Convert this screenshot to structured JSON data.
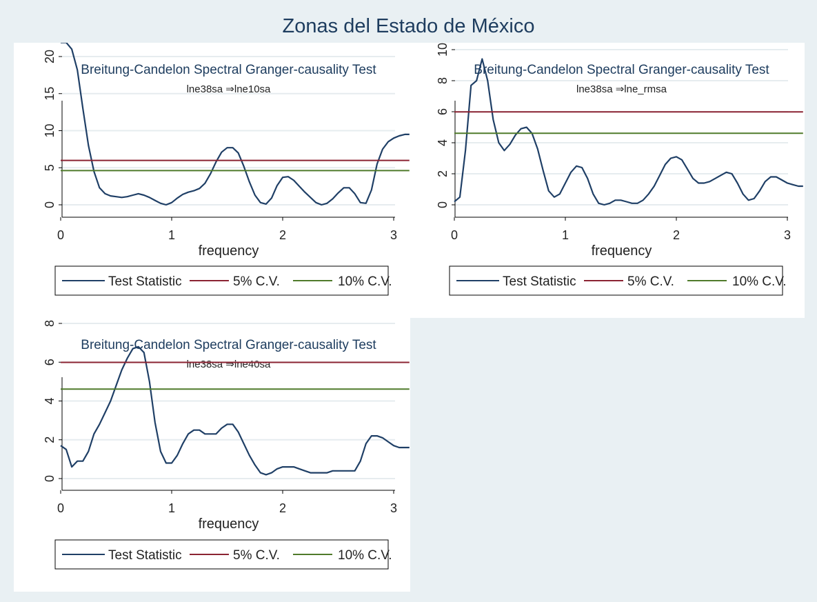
{
  "figure": {
    "title": "Zonas del Estado de México"
  },
  "colors": {
    "figure_bg": "#e9f0f3",
    "panel_bg": "#ffffff",
    "test_statistic": "#1f3f66",
    "cv5": "#8b2332",
    "cv10": "#4f7a2a"
  },
  "chart_data": [
    {
      "type": "line",
      "title": "Breitung-Candelon Spectral Granger-causality Test",
      "subtitle": "lne38sa ⇒lne10sa",
      "xlabel": "frequency",
      "ylabel": "",
      "xlim": [
        0,
        3.1416
      ],
      "ylim": [
        0,
        22
      ],
      "xticks": [
        0,
        1,
        2,
        3
      ],
      "yticks": [
        0,
        5,
        10,
        15,
        20
      ],
      "grid": true,
      "legend": {
        "position": "bottom",
        "entries": [
          "Test Statistic",
          "5% C.V.",
          "10% C.V."
        ]
      },
      "series": [
        {
          "name": "Test Statistic",
          "x": [
            0.0,
            0.05,
            0.1,
            0.15,
            0.2,
            0.25,
            0.3,
            0.35,
            0.4,
            0.45,
            0.5,
            0.55,
            0.6,
            0.65,
            0.7,
            0.75,
            0.8,
            0.85,
            0.9,
            0.95,
            1.0,
            1.05,
            1.1,
            1.15,
            1.2,
            1.25,
            1.3,
            1.35,
            1.4,
            1.45,
            1.5,
            1.55,
            1.6,
            1.65,
            1.7,
            1.75,
            1.8,
            1.85,
            1.9,
            1.95,
            2.0,
            2.05,
            2.1,
            2.15,
            2.2,
            2.25,
            2.3,
            2.35,
            2.4,
            2.45,
            2.5,
            2.55,
            2.6,
            2.65,
            2.7,
            2.75,
            2.8,
            2.85,
            2.9,
            2.95,
            3.0,
            3.05,
            3.1,
            3.1416
          ],
          "y": [
            21.9,
            21.9,
            21.0,
            18.2,
            13.0,
            8.0,
            4.5,
            2.3,
            1.5,
            1.2,
            1.1,
            1.0,
            1.1,
            1.3,
            1.5,
            1.3,
            1.0,
            0.6,
            0.2,
            0.0,
            0.3,
            0.9,
            1.4,
            1.7,
            1.9,
            2.2,
            2.9,
            4.2,
            5.8,
            7.1,
            7.7,
            7.7,
            7.0,
            5.2,
            3.1,
            1.3,
            0.3,
            0.1,
            0.9,
            2.6,
            3.7,
            3.8,
            3.3,
            2.5,
            1.7,
            1.0,
            0.3,
            0.0,
            0.2,
            0.8,
            1.6,
            2.3,
            2.3,
            1.5,
            0.3,
            0.2,
            2.0,
            5.5,
            7.5,
            8.5,
            9.0,
            9.3,
            9.5,
            9.5
          ]
        },
        {
          "name": "5% C.V.",
          "x": [
            0,
            3.1416
          ],
          "y": [
            5.99,
            5.99
          ]
        },
        {
          "name": "10% C.V.",
          "x": [
            0,
            3.1416
          ],
          "y": [
            4.61,
            4.61
          ]
        }
      ]
    },
    {
      "type": "line",
      "title": "Breitung-Candelon Spectral Granger-causality Test",
      "subtitle": "lne38sa ⇒lne_rmsa",
      "xlabel": "frequency",
      "ylabel": "",
      "xlim": [
        0,
        3.1416
      ],
      "ylim": [
        0,
        10
      ],
      "xticks": [
        0,
        1,
        2,
        3
      ],
      "yticks": [
        0,
        2,
        4,
        6,
        8,
        10
      ],
      "grid": true,
      "legend": {
        "position": "bottom",
        "entries": [
          "Test Statistic",
          "5% C.V.",
          "10% C.V."
        ]
      },
      "series": [
        {
          "name": "Test Statistic",
          "x": [
            0.0,
            0.05,
            0.1,
            0.15,
            0.2,
            0.25,
            0.3,
            0.35,
            0.4,
            0.45,
            0.5,
            0.55,
            0.6,
            0.65,
            0.7,
            0.75,
            0.8,
            0.85,
            0.9,
            0.95,
            1.0,
            1.05,
            1.1,
            1.15,
            1.2,
            1.25,
            1.3,
            1.35,
            1.4,
            1.45,
            1.5,
            1.55,
            1.6,
            1.65,
            1.7,
            1.75,
            1.8,
            1.85,
            1.9,
            1.95,
            2.0,
            2.05,
            2.1,
            2.15,
            2.2,
            2.25,
            2.3,
            2.35,
            2.4,
            2.45,
            2.5,
            2.55,
            2.6,
            2.65,
            2.7,
            2.75,
            2.8,
            2.85,
            2.9,
            2.95,
            3.0,
            3.05,
            3.1,
            3.1416
          ],
          "y": [
            0.2,
            0.5,
            3.5,
            7.7,
            8.0,
            9.4,
            8.0,
            5.5,
            4.0,
            3.5,
            3.9,
            4.5,
            4.9,
            5.0,
            4.6,
            3.6,
            2.2,
            0.9,
            0.5,
            0.7,
            1.4,
            2.1,
            2.5,
            2.4,
            1.7,
            0.7,
            0.1,
            0.0,
            0.1,
            0.3,
            0.3,
            0.2,
            0.1,
            0.1,
            0.3,
            0.7,
            1.2,
            1.9,
            2.6,
            3.0,
            3.1,
            2.9,
            2.3,
            1.7,
            1.4,
            1.4,
            1.5,
            1.7,
            1.9,
            2.1,
            2.0,
            1.4,
            0.7,
            0.3,
            0.4,
            0.9,
            1.5,
            1.8,
            1.8,
            1.6,
            1.4,
            1.3,
            1.2,
            1.2
          ]
        },
        {
          "name": "5% C.V.",
          "x": [
            0,
            3.1416
          ],
          "y": [
            5.99,
            5.99
          ]
        },
        {
          "name": "10% C.V.",
          "x": [
            0,
            3.1416
          ],
          "y": [
            4.61,
            4.61
          ]
        }
      ]
    },
    {
      "type": "line",
      "title": "Breitung-Candelon Spectral Granger-causality Test",
      "subtitle": "lne38sa ⇒lne40sa",
      "xlabel": "frequency",
      "ylabel": "",
      "xlim": [
        0,
        3.1416
      ],
      "ylim": [
        0,
        8
      ],
      "xticks": [
        0,
        1,
        2,
        3
      ],
      "yticks": [
        0,
        2,
        4,
        6,
        8
      ],
      "grid": true,
      "legend": {
        "position": "bottom",
        "entries": [
          "Test Statistic",
          "5% C.V.",
          "10% C.V."
        ]
      },
      "series": [
        {
          "name": "Test Statistic",
          "x": [
            0.0,
            0.05,
            0.1,
            0.15,
            0.2,
            0.25,
            0.3,
            0.35,
            0.4,
            0.45,
            0.5,
            0.55,
            0.6,
            0.65,
            0.7,
            0.75,
            0.8,
            0.85,
            0.9,
            0.95,
            1.0,
            1.05,
            1.1,
            1.15,
            1.2,
            1.25,
            1.3,
            1.35,
            1.4,
            1.45,
            1.5,
            1.55,
            1.6,
            1.65,
            1.7,
            1.75,
            1.8,
            1.85,
            1.9,
            1.95,
            2.0,
            2.05,
            2.1,
            2.15,
            2.2,
            2.25,
            2.3,
            2.35,
            2.4,
            2.45,
            2.5,
            2.55,
            2.6,
            2.65,
            2.7,
            2.75,
            2.8,
            2.85,
            2.9,
            2.95,
            3.0,
            3.05,
            3.1,
            3.1416
          ],
          "y": [
            1.7,
            1.5,
            0.6,
            0.9,
            0.9,
            1.4,
            2.3,
            2.8,
            3.4,
            4.0,
            4.8,
            5.6,
            6.2,
            6.7,
            6.8,
            6.5,
            5.0,
            2.9,
            1.4,
            0.8,
            0.8,
            1.2,
            1.8,
            2.3,
            2.5,
            2.5,
            2.3,
            2.3,
            2.3,
            2.6,
            2.8,
            2.8,
            2.4,
            1.8,
            1.2,
            0.7,
            0.3,
            0.2,
            0.3,
            0.5,
            0.6,
            0.6,
            0.6,
            0.5,
            0.4,
            0.3,
            0.3,
            0.3,
            0.3,
            0.4,
            0.4,
            0.4,
            0.4,
            0.4,
            0.9,
            1.8,
            2.2,
            2.2,
            2.1,
            1.9,
            1.7,
            1.6,
            1.6,
            1.6
          ]
        },
        {
          "name": "5% C.V.",
          "x": [
            0,
            3.1416
          ],
          "y": [
            5.99,
            5.99
          ]
        },
        {
          "name": "10% C.V.",
          "x": [
            0,
            3.1416
          ],
          "y": [
            4.61,
            4.61
          ]
        }
      ]
    }
  ]
}
